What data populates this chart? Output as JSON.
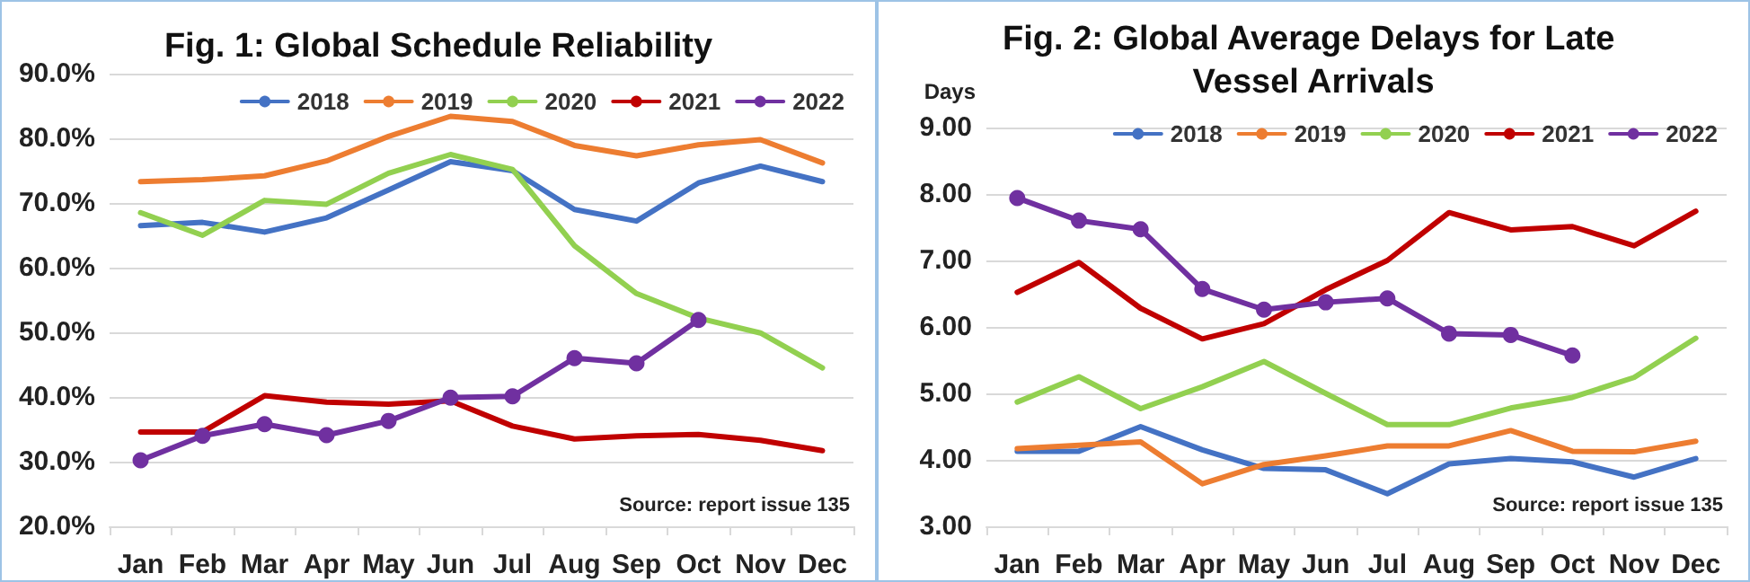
{
  "chart_data": [
    {
      "type": "line",
      "title": "Fig. 1: Global Schedule Reliability",
      "categories": [
        "Jan",
        "Feb",
        "Mar",
        "Apr",
        "May",
        "Jun",
        "Jul",
        "Aug",
        "Sep",
        "Oct",
        "Nov",
        "Dec"
      ],
      "series": [
        {
          "name": "2018",
          "color": "#4472c4",
          "marker": "none",
          "values": [
            66.5,
            67,
            65.5,
            67.7,
            72,
            76.4,
            75,
            69,
            67.2,
            73.1,
            75.7,
            73.3
          ]
        },
        {
          "name": "2019",
          "color": "#ed7d31",
          "marker": "none",
          "values": [
            73.3,
            73.6,
            74.2,
            76.5,
            80.3,
            83.4,
            82.6,
            78.9,
            77.3,
            79,
            79.8,
            76.2
          ]
        },
        {
          "name": "2020",
          "color": "#92d050",
          "marker": "none",
          "values": [
            68.5,
            65,
            70.4,
            69.8,
            74.6,
            77.5,
            75.2,
            63.4,
            56,
            52.2,
            49.9,
            44.5
          ]
        },
        {
          "name": "2021",
          "color": "#c00000",
          "marker": "none",
          "values": [
            34.6,
            34.6,
            40.2,
            39.2,
            38.9,
            39.4,
            35.5,
            33.5,
            34,
            34.2,
            33.3,
            31.7
          ]
        },
        {
          "name": "2022",
          "color": "#7030a0",
          "marker": "circle",
          "values": [
            30.2,
            34,
            35.8,
            34.1,
            36.3,
            39.9,
            40.1,
            46,
            45.2,
            51.9,
            null,
            null
          ]
        }
      ],
      "ylim": [
        20,
        90
      ],
      "yticks": [
        {
          "value": 20,
          "label": "20.0%"
        },
        {
          "value": 30,
          "label": "30.0%"
        },
        {
          "value": 40,
          "label": "40.0%"
        },
        {
          "value": 50,
          "label": "50.0%"
        },
        {
          "value": 60,
          "label": "60.0%"
        },
        {
          "value": 70,
          "label": "70.0%"
        },
        {
          "value": 80,
          "label": "80.0%"
        },
        {
          "value": 90,
          "label": "90.0%"
        }
      ],
      "grid": "y",
      "legend": "top right",
      "annotations": [
        "Source: report issue 135"
      ]
    },
    {
      "type": "line",
      "title": "Fig. 2: Global Average Delays for Late Vessel Arrivals",
      "ylabel": "Days",
      "categories": [
        "Jan",
        "Feb",
        "Mar",
        "Apr",
        "May",
        "Jun",
        "Jul",
        "Aug",
        "Sep",
        "Oct",
        "Nov",
        "Dec"
      ],
      "series": [
        {
          "name": "2018",
          "color": "#4472c4",
          "marker": "none",
          "values": [
            4.13,
            4.13,
            4.5,
            4.15,
            3.87,
            3.85,
            3.49,
            3.94,
            4.02,
            3.97,
            3.74,
            4.02
          ]
        },
        {
          "name": "2019",
          "color": "#ed7d31",
          "marker": "none",
          "values": [
            4.17,
            4.22,
            4.27,
            3.64,
            3.93,
            4.06,
            4.21,
            4.21,
            4.44,
            4.13,
            4.12,
            4.28
          ]
        },
        {
          "name": "2020",
          "color": "#92d050",
          "marker": "none",
          "values": [
            4.87,
            5.25,
            4.77,
            5.1,
            5.48,
            5,
            4.53,
            4.53,
            4.78,
            4.94,
            5.24,
            5.83
          ]
        },
        {
          "name": "2021",
          "color": "#c00000",
          "marker": "none",
          "values": [
            6.52,
            6.97,
            6.28,
            5.82,
            6.05,
            6.56,
            7,
            7.72,
            7.46,
            7.51,
            7.22,
            7.74
          ]
        },
        {
          "name": "2022",
          "color": "#7030a0",
          "marker": "circle",
          "values": [
            7.94,
            7.6,
            7.47,
            6.57,
            6.26,
            6.37,
            6.43,
            5.9,
            5.88,
            5.57,
            null,
            null
          ]
        }
      ],
      "ylim": [
        3,
        9
      ],
      "yticks": [
        {
          "value": 3,
          "label": "3.00"
        },
        {
          "value": 4,
          "label": "4.00"
        },
        {
          "value": 5,
          "label": "5.00"
        },
        {
          "value": 6,
          "label": "6.00"
        },
        {
          "value": 7,
          "label": "7.00"
        },
        {
          "value": 8,
          "label": "8.00"
        },
        {
          "value": 9,
          "label": "9.00"
        }
      ],
      "grid": "y",
      "legend": "top right",
      "annotations": [
        "Source: report issue 135"
      ]
    }
  ]
}
